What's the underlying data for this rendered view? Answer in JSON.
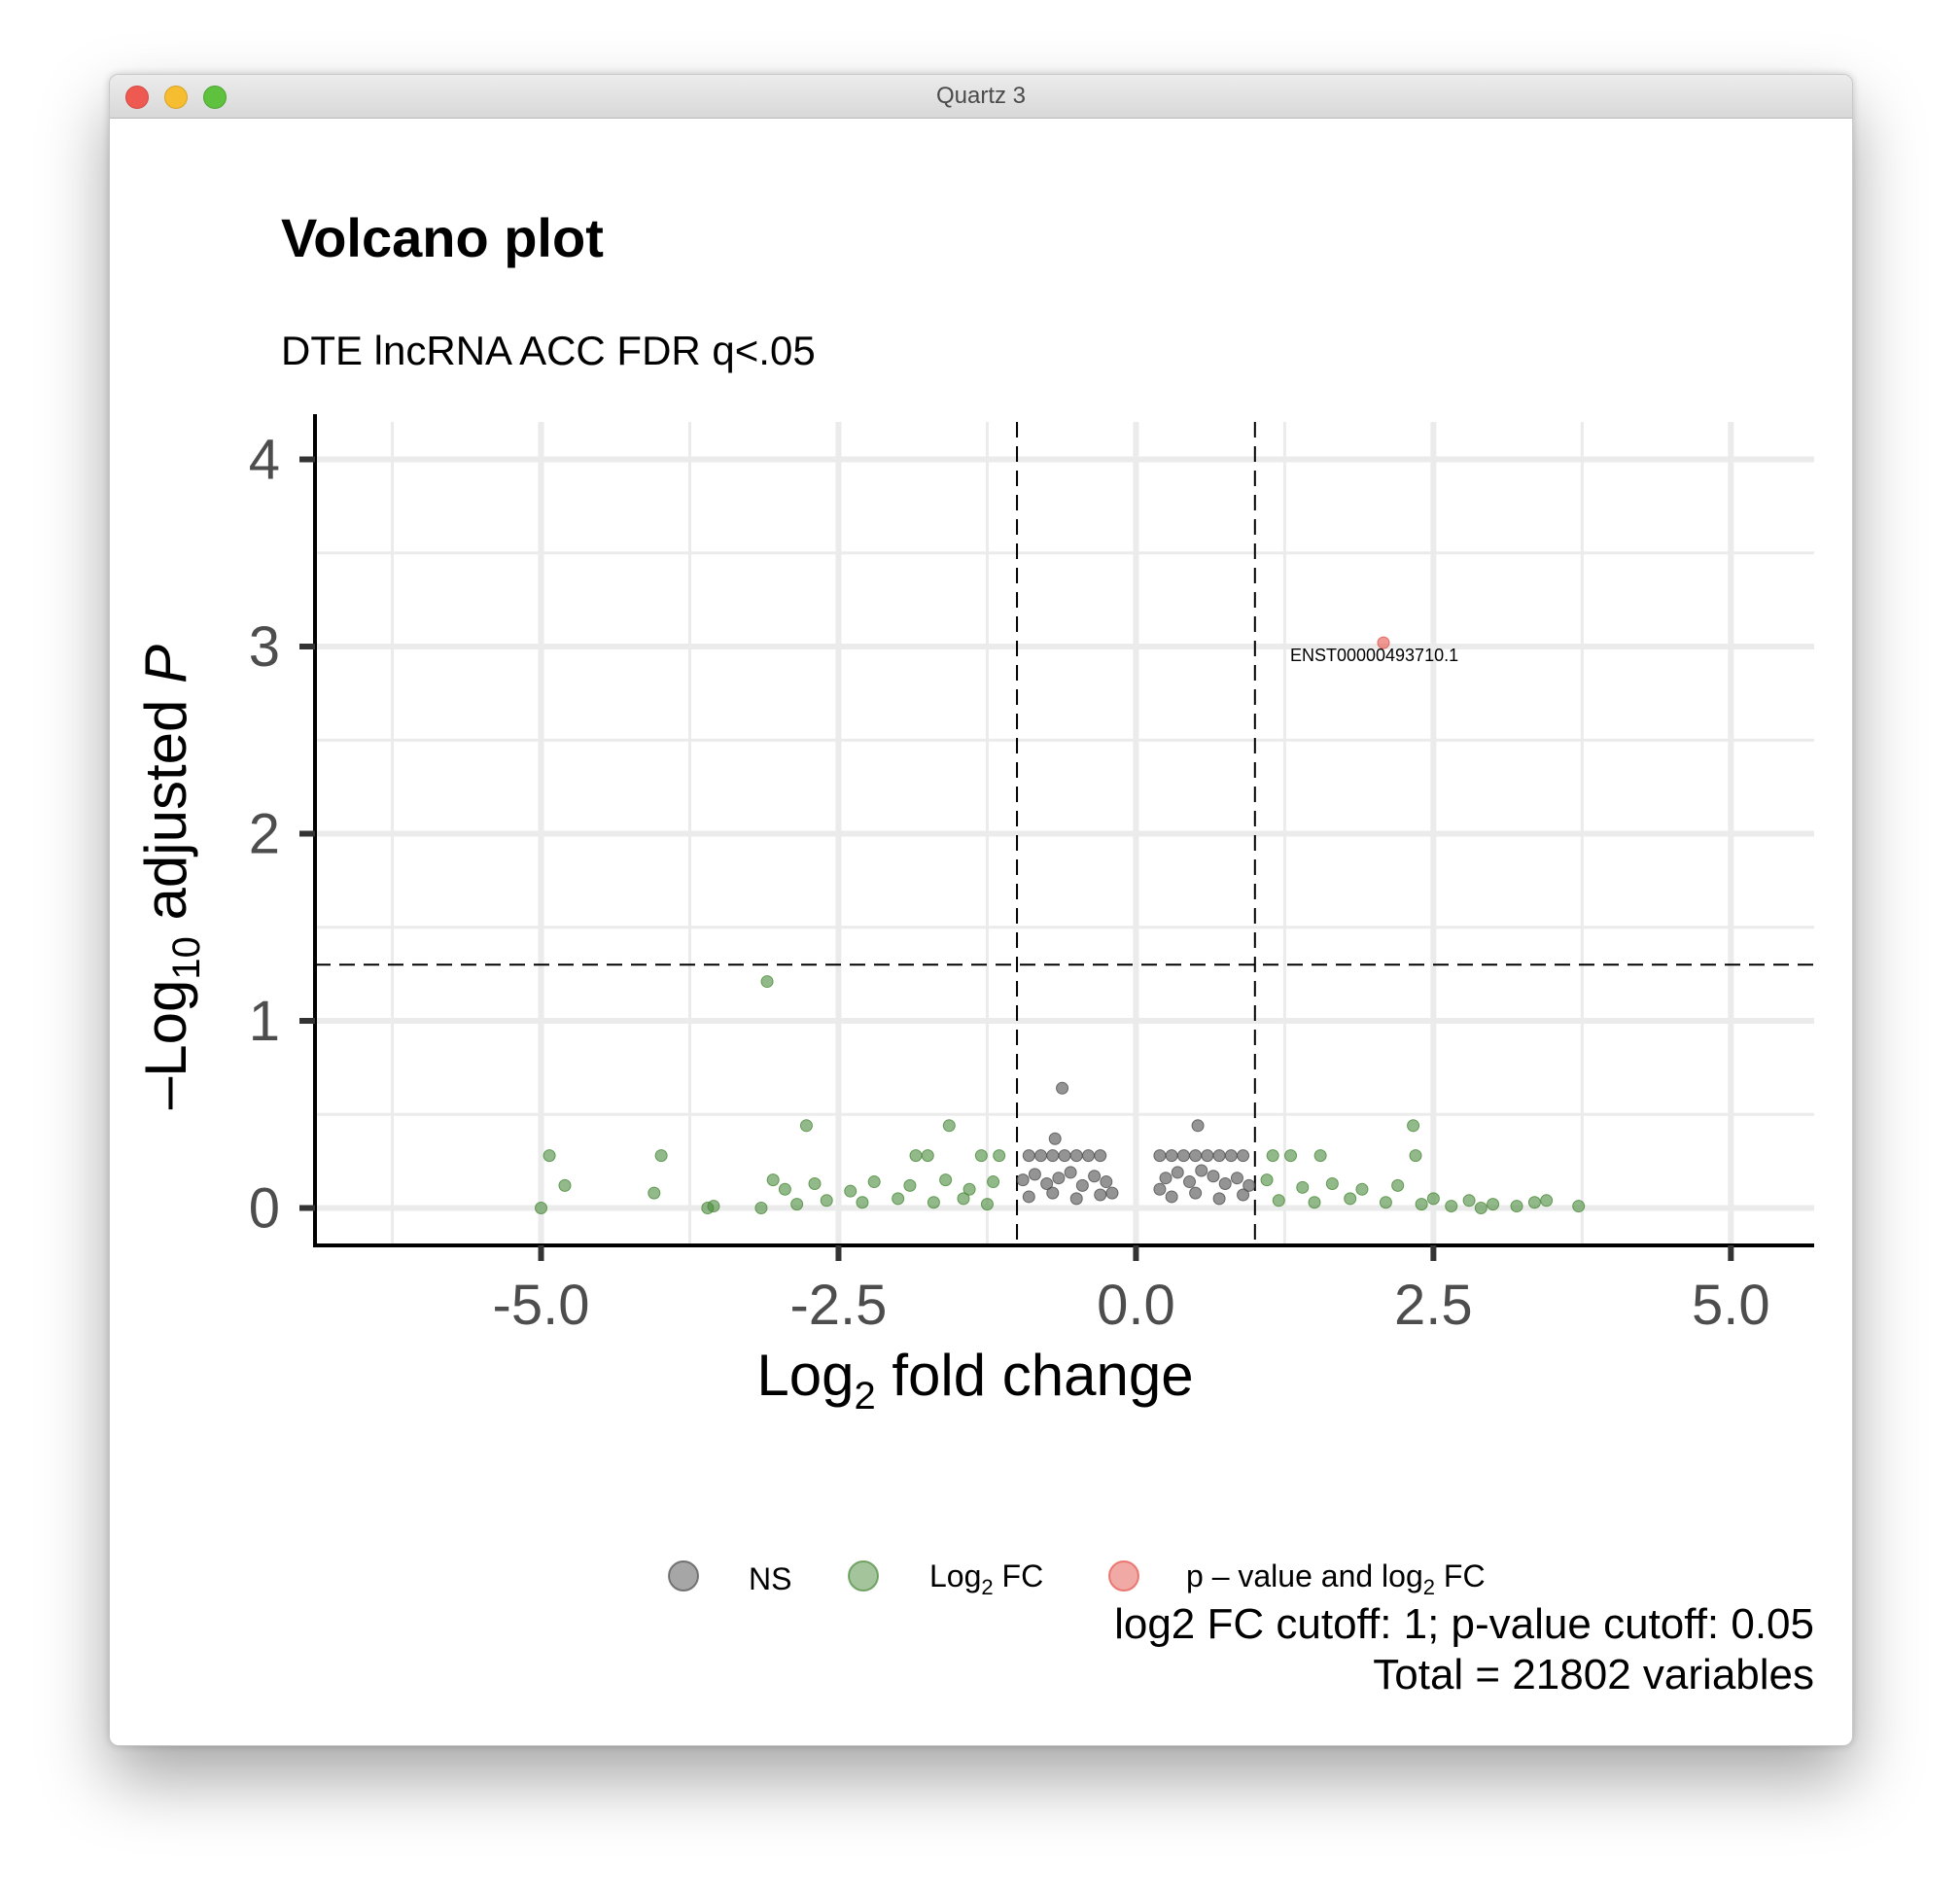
{
  "window": {
    "title": "Quartz 3"
  },
  "chart_data": {
    "type": "scatter",
    "title": "Volcano plot",
    "subtitle": "DTE lncRNA ACC FDR q<.05",
    "xlabel": {
      "main": "Log",
      "sub": "2",
      "rest": " fold change"
    },
    "ylabel": {
      "prefix": "–Log",
      "sub": "10",
      "mid": " adjusted ",
      "italic": "P"
    },
    "xlim": [
      -6.9,
      5.7
    ],
    "ylim": [
      -0.2,
      4.2
    ],
    "xticks": [
      -5.0,
      -2.5,
      0.0,
      2.5,
      5.0
    ],
    "xtick_labels": [
      "-5.0",
      "-2.5",
      "0.0",
      "2.5",
      "5.0"
    ],
    "yticks": [
      0,
      1,
      2,
      3,
      4
    ],
    "ytick_labels": [
      "0",
      "1",
      "2",
      "3",
      "4"
    ],
    "grid": true,
    "cutoffs": {
      "fc": [
        -1,
        1
      ],
      "p": 1.3
    },
    "legend_position": "bottom",
    "legend": [
      {
        "key": "ns",
        "main": "NS",
        "sub": "",
        "rest": "",
        "color": "#4d4d4d"
      },
      {
        "key": "fc",
        "main": "Log",
        "sub": "2",
        "rest": " FC",
        "color": "#4a8a3a"
      },
      {
        "key": "both",
        "main": "p – value and log",
        "sub": "2",
        "rest": " FC",
        "color": "#e4544d"
      }
    ],
    "colors": {
      "ns": "#4d4d4d",
      "fc": "#4a8a3a",
      "both": "#e4544d"
    },
    "caption": [
      "log2 FC cutoff: 1; p-value cutoff: 0.05",
      "Total = 21802 variables"
    ],
    "labeled_point": {
      "label": "ENST00000493710.1",
      "x": 2.08,
      "y": 3.02
    },
    "series": [
      {
        "name": "NS",
        "points": [
          [
            -0.62,
            0.64
          ],
          [
            -0.68,
            0.37
          ],
          [
            0.52,
            0.44
          ],
          [
            -0.9,
            0.28
          ],
          [
            -0.8,
            0.28
          ],
          [
            -0.7,
            0.28
          ],
          [
            -0.6,
            0.28
          ],
          [
            -0.5,
            0.28
          ],
          [
            -0.4,
            0.28
          ],
          [
            -0.3,
            0.28
          ],
          [
            0.2,
            0.28
          ],
          [
            0.3,
            0.28
          ],
          [
            0.4,
            0.28
          ],
          [
            0.5,
            0.28
          ],
          [
            0.6,
            0.28
          ],
          [
            0.7,
            0.28
          ],
          [
            0.8,
            0.28
          ],
          [
            0.9,
            0.28
          ],
          [
            -0.95,
            0.15
          ],
          [
            -0.85,
            0.18
          ],
          [
            -0.75,
            0.13
          ],
          [
            -0.65,
            0.16
          ],
          [
            -0.55,
            0.19
          ],
          [
            -0.45,
            0.12
          ],
          [
            -0.35,
            0.17
          ],
          [
            -0.25,
            0.14
          ],
          [
            -0.2,
            0.08
          ],
          [
            0.2,
            0.1
          ],
          [
            0.25,
            0.16
          ],
          [
            0.35,
            0.19
          ],
          [
            0.45,
            0.14
          ],
          [
            0.55,
            0.2
          ],
          [
            0.65,
            0.17
          ],
          [
            0.75,
            0.13
          ],
          [
            0.85,
            0.16
          ],
          [
            0.95,
            0.12
          ],
          [
            -0.9,
            0.06
          ],
          [
            -0.7,
            0.08
          ],
          [
            -0.5,
            0.05
          ],
          [
            -0.3,
            0.07
          ],
          [
            0.3,
            0.06
          ],
          [
            0.5,
            0.08
          ],
          [
            0.7,
            0.05
          ],
          [
            0.9,
            0.07
          ]
        ]
      },
      {
        "name": "Log2 FC",
        "points": [
          [
            -3.1,
            1.21
          ],
          [
            -2.77,
            0.44
          ],
          [
            -1.57,
            0.44
          ],
          [
            2.33,
            0.44
          ],
          [
            -4.93,
            0.28
          ],
          [
            -3.99,
            0.28
          ],
          [
            -1.85,
            0.28
          ],
          [
            -1.75,
            0.28
          ],
          [
            -1.3,
            0.28
          ],
          [
            -1.15,
            0.28
          ],
          [
            1.15,
            0.28
          ],
          [
            1.3,
            0.28
          ],
          [
            1.55,
            0.28
          ],
          [
            2.35,
            0.28
          ],
          [
            -4.8,
            0.12
          ],
          [
            -4.05,
            0.08
          ],
          [
            -3.05,
            0.15
          ],
          [
            -2.95,
            0.1
          ],
          [
            -2.7,
            0.13
          ],
          [
            -2.4,
            0.09
          ],
          [
            -2.2,
            0.14
          ],
          [
            -1.9,
            0.12
          ],
          [
            -1.6,
            0.15
          ],
          [
            -1.4,
            0.1
          ],
          [
            -1.2,
            0.14
          ],
          [
            1.1,
            0.15
          ],
          [
            1.4,
            0.11
          ],
          [
            1.65,
            0.13
          ],
          [
            1.9,
            0.1
          ],
          [
            2.2,
            0.12
          ],
          [
            2.5,
            0.05
          ],
          [
            2.8,
            0.04
          ],
          [
            3.0,
            0.02
          ],
          [
            3.35,
            0.03
          ],
          [
            3.45,
            0.04
          ],
          [
            3.72,
            0.01
          ],
          [
            -5.0,
            0.0
          ],
          [
            -3.6,
            0.0
          ],
          [
            -3.55,
            0.01
          ],
          [
            -3.15,
            0.0
          ],
          [
            -2.85,
            0.02
          ],
          [
            -2.6,
            0.04
          ],
          [
            -2.3,
            0.03
          ],
          [
            -2.0,
            0.05
          ],
          [
            -1.7,
            0.03
          ],
          [
            -1.45,
            0.05
          ],
          [
            -1.25,
            0.02
          ],
          [
            1.2,
            0.04
          ],
          [
            1.5,
            0.03
          ],
          [
            1.8,
            0.05
          ],
          [
            2.1,
            0.03
          ],
          [
            2.4,
            0.02
          ],
          [
            2.65,
            0.01
          ],
          [
            2.9,
            0.0
          ],
          [
            3.2,
            0.01
          ]
        ]
      },
      {
        "name": "p – value and log2 FC",
        "points": [
          [
            2.08,
            3.02
          ]
        ]
      }
    ]
  }
}
